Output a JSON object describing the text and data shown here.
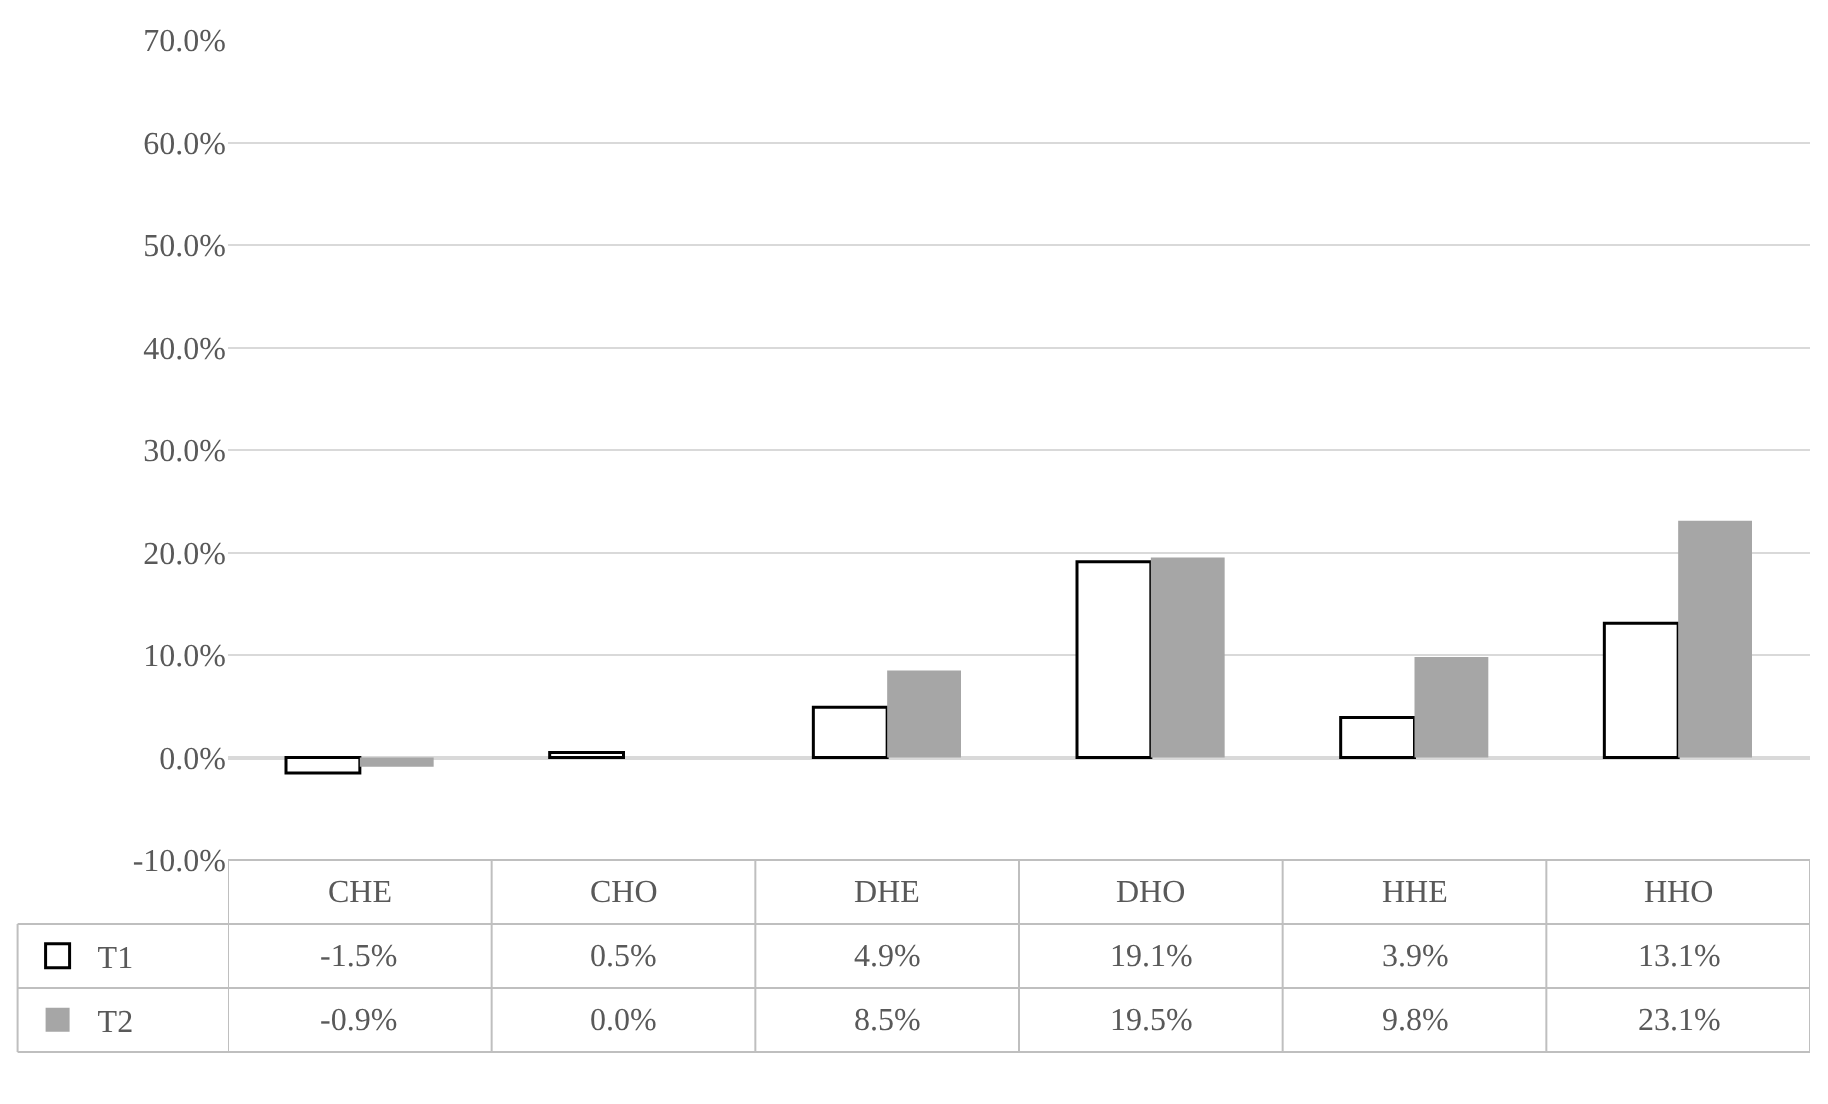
{
  "chart_data": {
    "type": "bar",
    "categories": [
      "CHE",
      "CHO",
      "DHE",
      "DHO",
      "HHE",
      "HHO"
    ],
    "series": [
      {
        "name": "T1",
        "color": "#000000",
        "values": [
          -1.5,
          0.5,
          4.9,
          19.1,
          3.9,
          13.1
        ],
        "value_labels": [
          "-1.5%",
          "0.5%",
          "4.9%",
          "19.1%",
          "3.9%",
          "13.1%"
        ]
      },
      {
        "name": "T2",
        "color": "#a6a6a6",
        "values": [
          -0.9,
          0.0,
          8.5,
          19.5,
          9.8,
          23.1
        ],
        "value_labels": [
          "-0.9%",
          "0.0%",
          "8.5%",
          "19.5%",
          "9.8%",
          "23.1%"
        ]
      }
    ],
    "ylim": [
      -10,
      70
    ],
    "yticks": [
      {
        "value": -10,
        "label": "-10.0%"
      },
      {
        "value": 0,
        "label": "0.0%"
      },
      {
        "value": 10,
        "label": "10.0%"
      },
      {
        "value": 20,
        "label": "20.0%"
      },
      {
        "value": 30,
        "label": "30.0%"
      },
      {
        "value": 40,
        "label": "40.0%"
      },
      {
        "value": 50,
        "label": "50.0%"
      },
      {
        "value": 60,
        "label": "60.0%"
      },
      {
        "value": 70,
        "label": "70.0%"
      }
    ],
    "grid": "y",
    "legend": "bottom left"
  }
}
